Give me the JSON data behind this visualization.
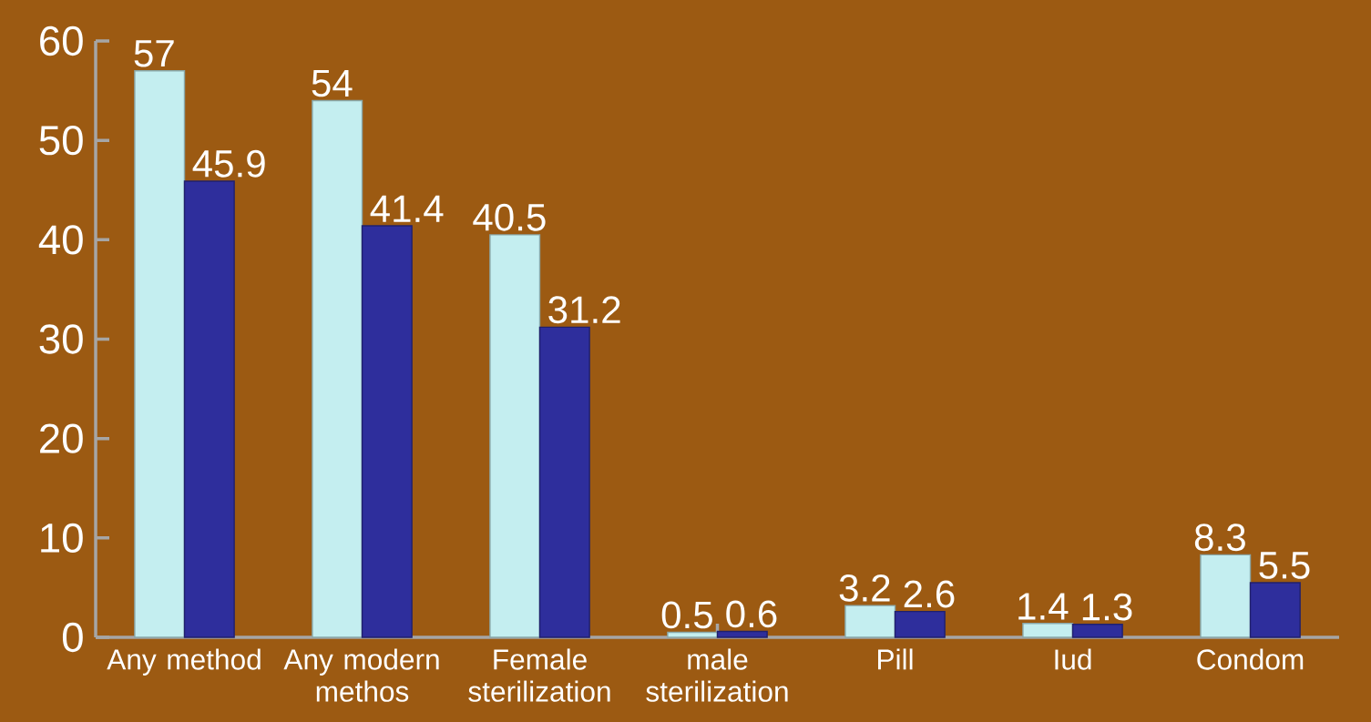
{
  "chart_data": {
    "type": "bar",
    "categories": [
      "Any method",
      "Any modern methos",
      "Female sterilization",
      "male sterilization",
      "Pill",
      "Iud",
      "Condom"
    ],
    "series": [
      {
        "color": "#c4eef0",
        "values": [
          57,
          54,
          40.5,
          0.5,
          3.2,
          1.4,
          8.3
        ],
        "value_labels": [
          "57",
          "54",
          "40.5",
          "0.5",
          "3.2",
          "1.4",
          "8.3"
        ]
      },
      {
        "color": "#2e2e9c",
        "values": [
          45.9,
          41.4,
          31.2,
          0.6,
          2.6,
          1.3,
          5.5
        ],
        "value_labels": [
          "45.9",
          "41.4",
          "31.2",
          "0.6",
          "2.6",
          "1.3",
          "5.5"
        ]
      }
    ],
    "ylim": [
      0,
      60
    ],
    "yticks": [
      0,
      10,
      20,
      30,
      40,
      50,
      60
    ],
    "grid": false
  }
}
